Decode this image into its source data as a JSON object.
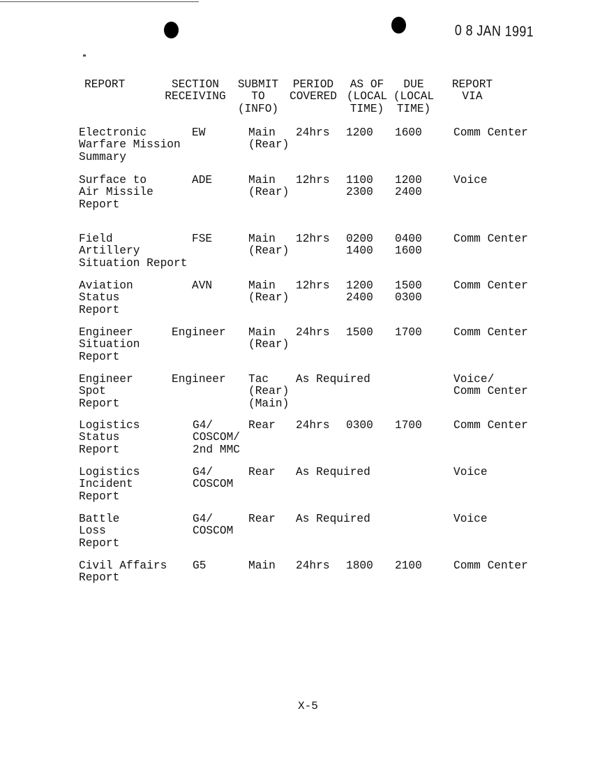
{
  "date_stamp": "0 8 JAN 1991",
  "headers": {
    "report": "REPORT",
    "section": "SECTION\nRECEIVING",
    "submit": "SUBMIT\nTO\n(INFO)",
    "period": "PERIOD\nCOVERED",
    "as_of": "AS OF\n(LOCAL\nTIME)",
    "due": "DUE\n(LOCAL\nTIME)",
    "via": "REPORT\nVIA"
  },
  "rows": [
    {
      "report": "Electronic\nWarfare Mission\nSummary",
      "section": "EW",
      "submit": "Main\n(Rear)",
      "period": "24hrs",
      "as_of": "1200",
      "due": "1600",
      "via": "Comm Center"
    },
    {
      "report": "Surface to\nAir Missile\nReport",
      "section": "ADE",
      "submit": "Main\n(Rear)",
      "period": "12hrs",
      "as_of": "1100\n2300",
      "due": "1200\n2400",
      "via": "Voice"
    },
    {
      "report": "Field\nArtillery\nSituation Report",
      "section": "FSE",
      "submit": "Main\n(Rear)",
      "period": "12hrs",
      "as_of": "0200\n1400",
      "due": "0400\n1600",
      "via": "Comm Center"
    },
    {
      "report": "Aviation\nStatus\nReport",
      "section": "AVN",
      "submit": "Main\n(Rear)",
      "period": "12hrs",
      "as_of": "1200\n2400",
      "due": "1500\n0300",
      "via": "Comm Center"
    },
    {
      "report": "Engineer\nSituation\nReport",
      "section": "Engineer",
      "submit": "Main\n(Rear)",
      "period": "24hrs",
      "as_of": "1500",
      "due": "1700",
      "via": "Comm Center"
    },
    {
      "report": "Engineer\nSpot\nReport",
      "section": "Engineer",
      "submit": "Tac\n(Rear)\n(Main)",
      "period": "As Required",
      "as_of": "",
      "due": "",
      "via": "Voice/\nComm Center"
    },
    {
      "report": "Logistics\nStatus\nReport",
      "section": "G4/\nCOSCOM/\n2nd MMC",
      "submit": "Rear",
      "period": "24hrs",
      "as_of": "0300",
      "due": "1700",
      "via": "Comm Center"
    },
    {
      "report": "Logistics\nIncident\nReport",
      "section": "G4/\nCOSCOM",
      "submit": "Rear",
      "period": "As Required",
      "as_of": "",
      "due": "",
      "via": "Voice"
    },
    {
      "report": "Battle\nLoss\nReport",
      "section": "G4/\nCOSCOM",
      "submit": "Rear",
      "period": "As Required",
      "as_of": "",
      "due": "",
      "via": "Voice"
    },
    {
      "report": "Civil Affairs\nReport",
      "section": "G5",
      "submit": "Main",
      "period": "24hrs",
      "as_of": "1800",
      "due": "2100",
      "via": "Comm Center"
    }
  ],
  "page_number": "X-5"
}
